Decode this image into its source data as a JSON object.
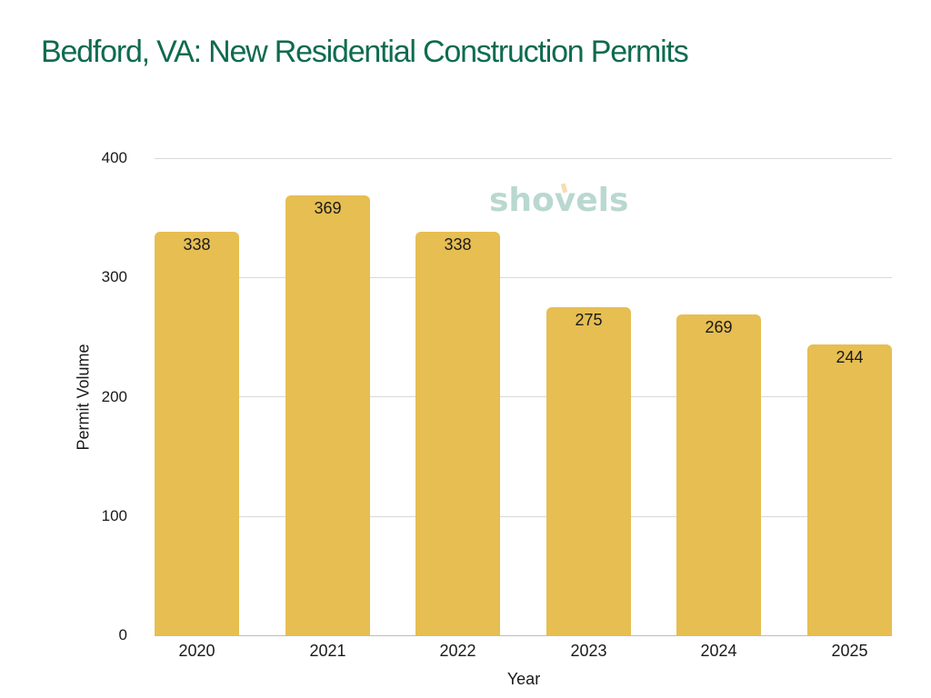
{
  "title": "Bedford, VA: New Residential Construction Permits",
  "watermark": "shovels",
  "colors": {
    "title": "#0f6b4f",
    "bar": "#e6be52",
    "grid": "#d9d9d9",
    "watermark": "#b9d8cf"
  },
  "axes": {
    "xlabel": "Year",
    "ylabel": "Permit Volume",
    "yticks": [
      "0",
      "100",
      "200",
      "300",
      "400"
    ],
    "xticks": [
      "2020",
      "2021",
      "2022",
      "2023",
      "2024",
      "2025"
    ]
  },
  "bars": [
    {
      "year": "2020",
      "value": 338,
      "label": "338"
    },
    {
      "year": "2021",
      "value": 369,
      "label": "369"
    },
    {
      "year": "2022",
      "value": 338,
      "label": "338"
    },
    {
      "year": "2023",
      "value": 275,
      "label": "275"
    },
    {
      "year": "2024",
      "value": 269,
      "label": "269"
    },
    {
      "year": "2025",
      "value": 244,
      "label": "244"
    }
  ],
  "chart_data": {
    "type": "bar",
    "title": "Bedford, VA: New Residential Construction Permits",
    "categories": [
      "2020",
      "2021",
      "2022",
      "2023",
      "2024",
      "2025"
    ],
    "values": [
      338,
      369,
      338,
      275,
      269,
      244
    ],
    "xlabel": "Year",
    "ylabel": "Permit Volume",
    "ylim": [
      0,
      400
    ],
    "yticks": [
      0,
      100,
      200,
      300,
      400
    ],
    "grid": true,
    "legend": null,
    "data_labels": true,
    "watermark": "shovels"
  }
}
